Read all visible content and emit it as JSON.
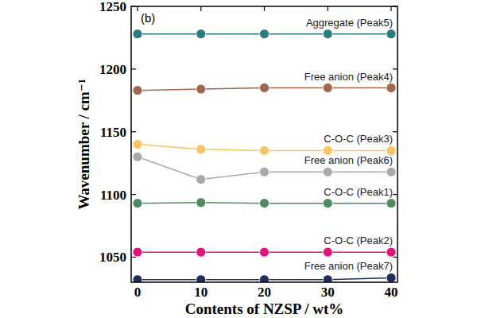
{
  "chart_data": {
    "type": "line",
    "annotation": "(b)",
    "x_label": "Contents of NZSP / wt%",
    "y_label": "Wavenumber / cm⁻¹",
    "x": [
      0,
      10,
      20,
      30,
      40
    ],
    "xlim": [
      -1,
      41
    ],
    "xticks": [
      0,
      10,
      20,
      30,
      40
    ],
    "ylim": [
      1030,
      1250
    ],
    "yticks": [
      1050,
      1100,
      1150,
      1200,
      1250
    ],
    "marker": "circle",
    "series": [
      {
        "name": "Aggregate (Peak5)",
        "color": "#2b7b82",
        "values": [
          1228,
          1228,
          1228,
          1228,
          1228
        ]
      },
      {
        "name": "Free anion (Peak4)",
        "color": "#a0674b",
        "values": [
          1183,
          1184,
          1185,
          1185,
          1185
        ]
      },
      {
        "name": "C-O-C (Peak3)",
        "color": "#f6c462",
        "values": [
          1140,
          1136,
          1135,
          1135,
          1135
        ]
      },
      {
        "name": "Free anion (Peak6)",
        "color": "#a9a9a9",
        "values": [
          1130,
          1112,
          1118,
          1118,
          1118
        ]
      },
      {
        "name": "C-O-C (Peak1)",
        "color": "#4f8a5f",
        "values": [
          1093,
          1093.5,
          1093,
          1093,
          1093
        ]
      },
      {
        "name": "C-O-C (Peak2)",
        "color": "#e0157b",
        "values": [
          1054,
          1054,
          1054,
          1054,
          1054
        ]
      },
      {
        "name": "Free anion (Peak7)",
        "color": "#1f2d5b",
        "values": [
          1032,
          1032,
          1032,
          1032,
          1033.5
        ]
      }
    ]
  }
}
